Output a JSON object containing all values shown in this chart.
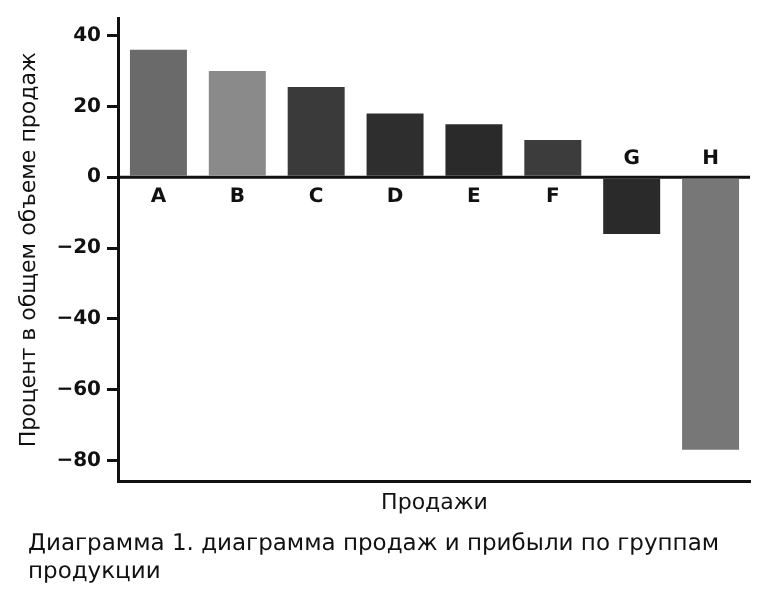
{
  "chart_data": {
    "type": "bar",
    "title": "Диаграмма 1. диаграмма продаж и прибыли по группам продукции",
    "xlabel": "Продажи",
    "ylabel": "Процент в общем объеме продаж",
    "categories": [
      "A",
      "B",
      "C",
      "D",
      "E",
      "F",
      "G",
      "H"
    ],
    "values": [
      36,
      30,
      25.5,
      18,
      15,
      10.5,
      -16,
      -77
    ],
    "colors": [
      "#6a6a6a",
      "#8a8a8a",
      "#3a3a3a",
      "#2e2e2e",
      "#2a2a2a",
      "#3c3c3c",
      "#2a2a2a",
      "#777777"
    ],
    "ylim": [
      -86,
      45
    ],
    "yticks": [
      40,
      20,
      0,
      -20,
      -40,
      -60,
      -80
    ],
    "grid": false,
    "legend": false
  }
}
